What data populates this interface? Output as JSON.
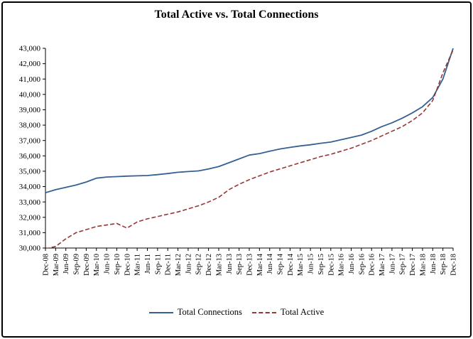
{
  "title": "Total Active vs. Total Connections",
  "chart_data": {
    "type": "line",
    "title": "Total Active vs. Total Connections",
    "xlabel": "",
    "ylabel": "",
    "ylim": [
      30000,
      43000
    ],
    "ytick_step": 1000,
    "grid": false,
    "legend_position": "bottom",
    "categories": [
      "Dec-08",
      "Mar-09",
      "Jun-09",
      "Sep-09",
      "Dec-09",
      "Mar-10",
      "Jun-10",
      "Sep-10",
      "Dec-10",
      "Mar-11",
      "Jun-11",
      "Sep-11",
      "Dec-11",
      "Mar-12",
      "Jun-12",
      "Sep-12",
      "Dec-12",
      "Mar-13",
      "Jun-13",
      "Sep-13",
      "Dec-13",
      "Mar-14",
      "Jun-14",
      "Sep-14",
      "Dec-14",
      "Mar-15",
      "Jun-15",
      "Sep-15",
      "Dec-15",
      "Mar-16",
      "Jun-16",
      "Sep-16",
      "Dec-16",
      "Mar-17",
      "Jun-17",
      "Sep-17",
      "Dec-17",
      "Mar-18",
      "Jun-18",
      "Sep-18",
      "Dec-18"
    ],
    "series": [
      {
        "name": "Total Connections",
        "color": "#366092",
        "style": "solid",
        "values": [
          33600,
          33800,
          33950,
          34100,
          34300,
          34550,
          34620,
          34650,
          34680,
          34700,
          34720,
          34780,
          34850,
          34930,
          34980,
          35020,
          35150,
          35300,
          35550,
          35800,
          36050,
          36150,
          36300,
          36450,
          36550,
          36650,
          36720,
          36820,
          36900,
          37050,
          37200,
          37350,
          37600,
          37900,
          38150,
          38450,
          38800,
          39200,
          39800,
          41000,
          43000
        ]
      },
      {
        "name": "Total Active",
        "color": "#953735",
        "style": "dashed",
        "values": [
          29950,
          30100,
          30600,
          31000,
          31200,
          31400,
          31500,
          31600,
          31300,
          31700,
          31900,
          32050,
          32200,
          32350,
          32550,
          32750,
          33000,
          33300,
          33800,
          34150,
          34450,
          34700,
          34950,
          35150,
          35350,
          35550,
          35750,
          35950,
          36100,
          36300,
          36500,
          36750,
          37000,
          37300,
          37600,
          37900,
          38300,
          38800,
          39600,
          41400,
          42900
        ]
      }
    ]
  }
}
